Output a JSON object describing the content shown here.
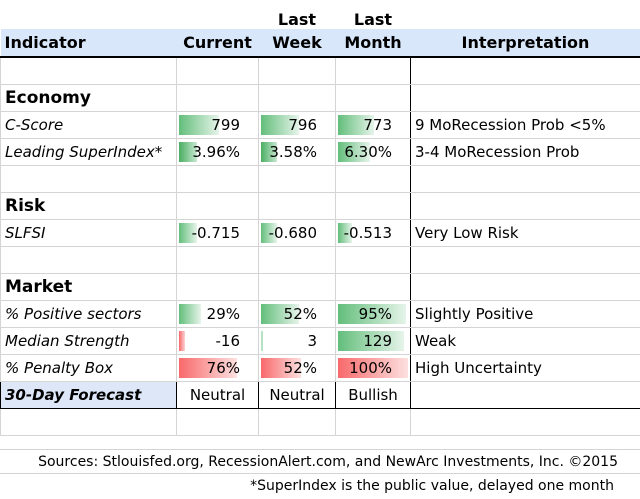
{
  "header": {
    "row1": {
      "current": "",
      "last_week": "Last",
      "last_month": "Last",
      "interpretation": ""
    },
    "row2": {
      "indicator": "Indicator",
      "current": "Current",
      "last_week": "Week",
      "last_month": "Month",
      "interpretation": "Interpretation"
    }
  },
  "sections": {
    "economy": "Economy",
    "risk": "Risk",
    "market": "Market"
  },
  "rows": {
    "cscore": {
      "label": "C-Score",
      "current": "799",
      "last_week": "796",
      "last_month": "773",
      "interp": "9 MoRecession Prob <5%"
    },
    "leading": {
      "label": "Leading SuperIndex*",
      "current": "3.96%",
      "last_week": "3.58%",
      "last_month": "6.30%",
      "interp": "3-4 MoRecession Prob"
    },
    "slfsi": {
      "label": "SLFSI",
      "current": "-0.715",
      "last_week": "-0.680",
      "last_month": "-0.513",
      "interp": "Very Low Risk"
    },
    "positive": {
      "label": "% Positive sectors",
      "current": "29%",
      "last_week": "52%",
      "last_month": "95%",
      "interp": "Slightly Positive"
    },
    "median": {
      "label": "Median Strength",
      "current": "-16",
      "last_week": "3",
      "last_month": "129",
      "interp": "Weak"
    },
    "penalty": {
      "label": "% Penalty Box",
      "current": "76%",
      "last_week": "52%",
      "last_month": "100%",
      "interp": "High Uncertainty"
    },
    "forecast": {
      "label": "30-Day Forecast",
      "current": "Neutral",
      "last_week": "Neutral",
      "last_month": "Bullish",
      "interp": ""
    }
  },
  "footer": {
    "sources": "Sources: Stlouisfed.org, RecessionAlert.com, and NewArc Investments, Inc. ©2015",
    "note": "*SuperIndex is the public value, delayed one month"
  },
  "colors": {
    "header_bg": "#d9e7fb",
    "green_bar": "#63be7b",
    "red_bar": "#f8696b",
    "forecast_bg": "#dde7f8"
  }
}
